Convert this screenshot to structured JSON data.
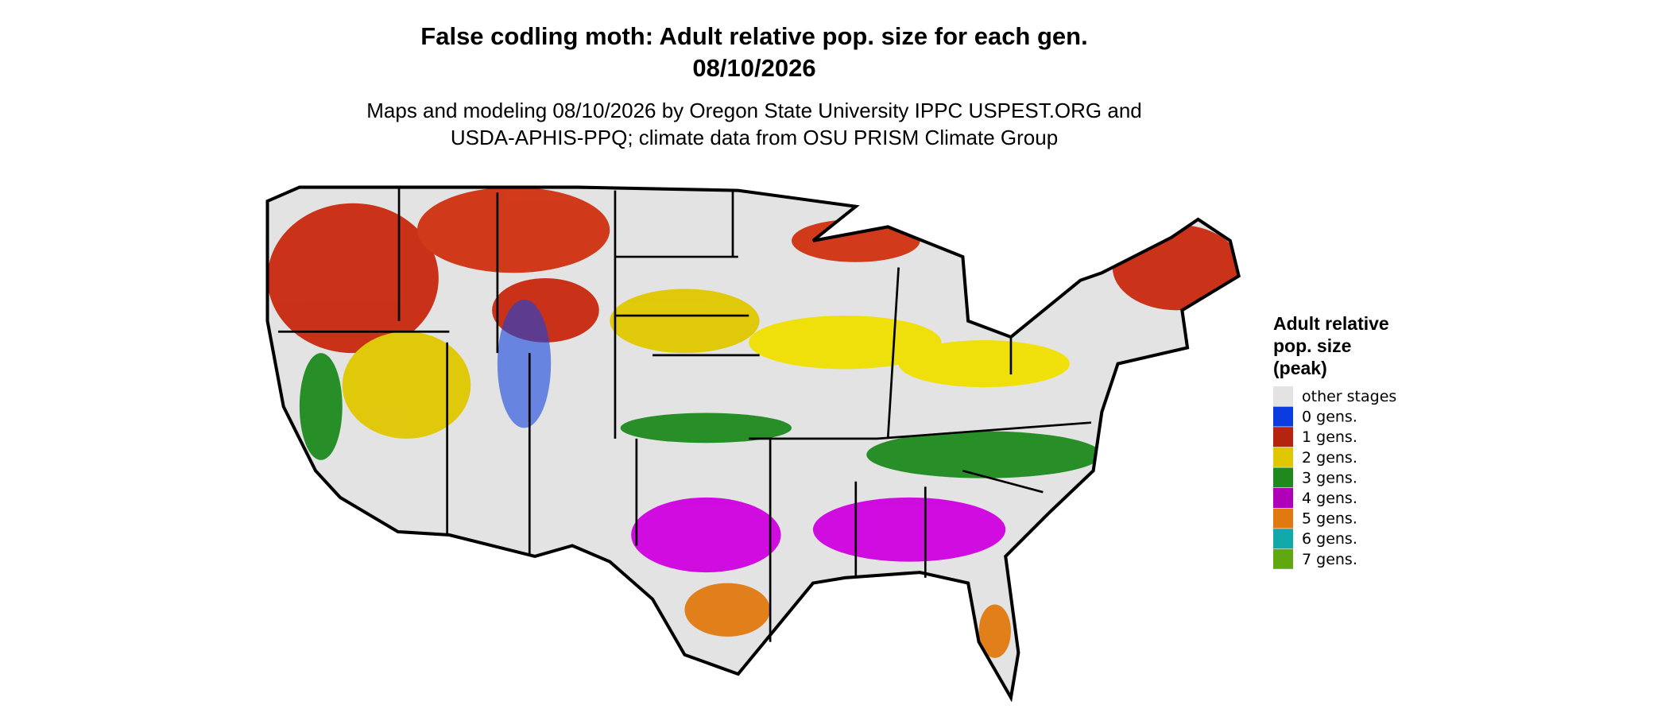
{
  "title_lines": [
    "False codling moth: Adult relative pop. size for each gen.",
    "08/10/2026"
  ],
  "subtitle_lines": [
    "Maps and modeling 08/10/2026 by Oregon State University IPPC USPEST.ORG and",
    "USDA-APHIS-PPQ; climate data from OSU PRISM Climate Group"
  ],
  "legend": {
    "title_lines": [
      "Adult relative",
      "pop. size",
      "(peak)"
    ],
    "items": [
      {
        "label": "other stages",
        "color": "#e3e3e3"
      },
      {
        "label": "0 gens.",
        "color": "#0a3ce0"
      },
      {
        "label": "1 gens.",
        "color": "#b5240e"
      },
      {
        "label": "2 gens.",
        "color": "#e0c800"
      },
      {
        "label": "3 gens.",
        "color": "#1e8a1e"
      },
      {
        "label": "4 gens.",
        "color": "#b000b8"
      },
      {
        "label": "5 gens.",
        "color": "#e07a10"
      },
      {
        "label": "6 gens.",
        "color": "#10a8a8"
      },
      {
        "label": "7 gens.",
        "color": "#60a810"
      }
    ]
  }
}
